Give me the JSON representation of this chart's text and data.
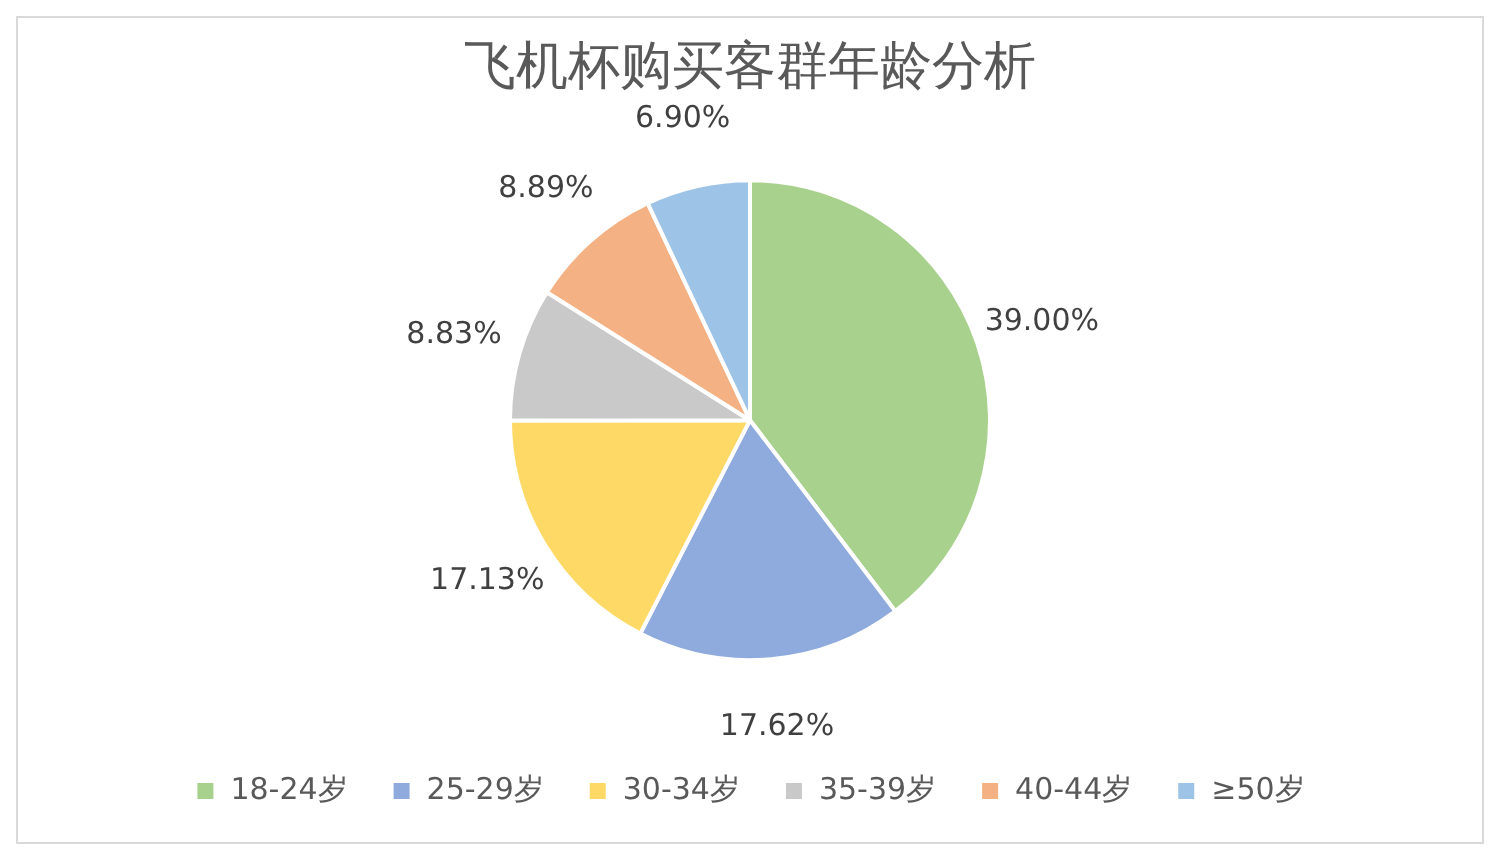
{
  "chart_data": {
    "type": "pie",
    "title": "飞机杯购买客群年龄分析",
    "categories": [
      "18-24岁",
      "25-29岁",
      "30-34岁",
      "35-39岁",
      "40-44岁",
      "≥50岁"
    ],
    "values": [
      39.0,
      17.62,
      17.13,
      8.83,
      8.89,
      6.9
    ],
    "colors": [
      "#a9d18e",
      "#8faadc",
      "#ffd966",
      "#c9c9c9",
      "#f4b183",
      "#9dc3e6"
    ],
    "value_labels": [
      "39.00%",
      "17.62%",
      "17.13%",
      "8.83%",
      "8.89%",
      "6.90%"
    ],
    "legend": "bottom"
  }
}
